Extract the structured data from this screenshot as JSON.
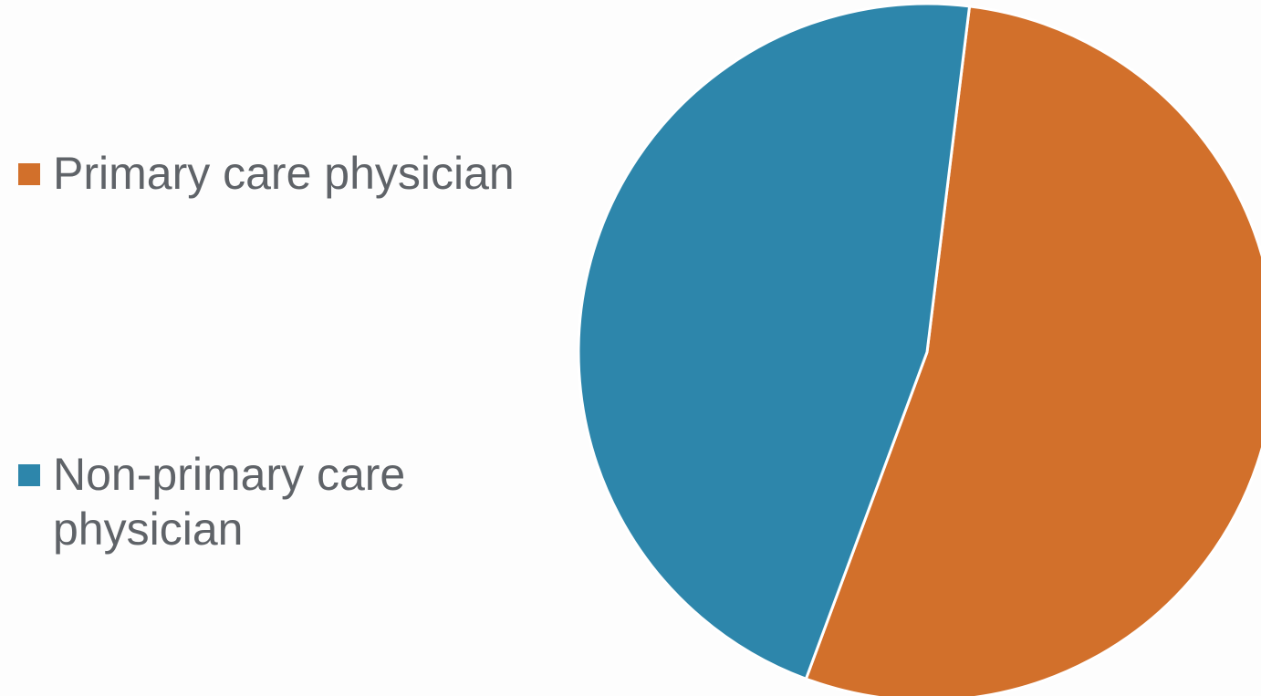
{
  "chart_data": {
    "type": "pie",
    "title": "",
    "start_angle_deg": 7,
    "series": [
      {
        "name": "Primary care physician",
        "value": 53.7,
        "color": "#d2702b"
      },
      {
        "name": "Non-primary care physician",
        "value": 46.3,
        "color": "#2d86ab"
      }
    ],
    "legend_position": "left"
  }
}
